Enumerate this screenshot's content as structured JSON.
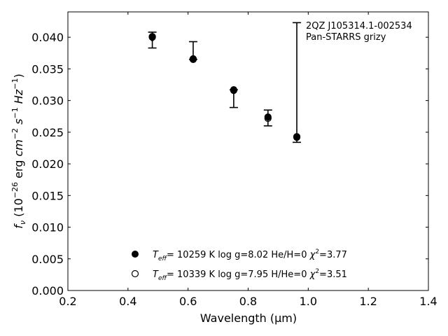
{
  "chart_data": {
    "type": "scatter",
    "xlabel": "Wavelength (μm)",
    "ylabel": "f_ν (10^−26 erg cm^−2 s^−1 Hz^−1)",
    "xlim": [
      0.2,
      1.4
    ],
    "ylim": [
      0.0,
      0.044
    ],
    "xticks": [
      0.2,
      0.4,
      0.6,
      0.8,
      1.0,
      1.2,
      1.4
    ],
    "yticks": [
      0.0,
      0.005,
      0.01,
      0.015,
      0.02,
      0.025,
      0.03,
      0.035,
      0.04
    ],
    "grid": false,
    "annotation": [
      "2QZ J105314.1-002534",
      "Pan-STARRS grizy"
    ],
    "observed": {
      "x": [
        0.481,
        0.617,
        0.752,
        0.866,
        0.962
      ],
      "y": [
        0.0396,
        0.0369,
        0.0315,
        0.0273,
        0.0241
      ],
      "yerr_low": [
        0.0383,
        0.0365,
        0.0289,
        0.026,
        0.0234
      ],
      "yerr_high": [
        0.0408,
        0.0393,
        0.0317,
        0.0285,
        0.0423
      ]
    },
    "series": [
      {
        "marker": "filled",
        "x": [
          0.481,
          0.617,
          0.752,
          0.866,
          0.962
        ],
        "y": [
          0.0401,
          0.0366,
          0.0317,
          0.0274,
          0.0243
        ]
      },
      {
        "marker": "open",
        "x": [
          0.481,
          0.617,
          0.752,
          0.866,
          0.962
        ],
        "y": [
          0.04,
          0.0365,
          0.0316,
          0.0272,
          0.0242
        ]
      }
    ],
    "legend": {
      "placement": "lower-center",
      "entries": [
        {
          "marker": "filled",
          "teff": "= 10259 K",
          "logg": "log g=8.02",
          "comp": "He/H=0",
          "chi2": "=3.77"
        },
        {
          "marker": "open",
          "teff": "= 10339 K",
          "logg": "log g=7.95",
          "comp": "H/He=0",
          "chi2": "=3.51"
        }
      ]
    }
  }
}
